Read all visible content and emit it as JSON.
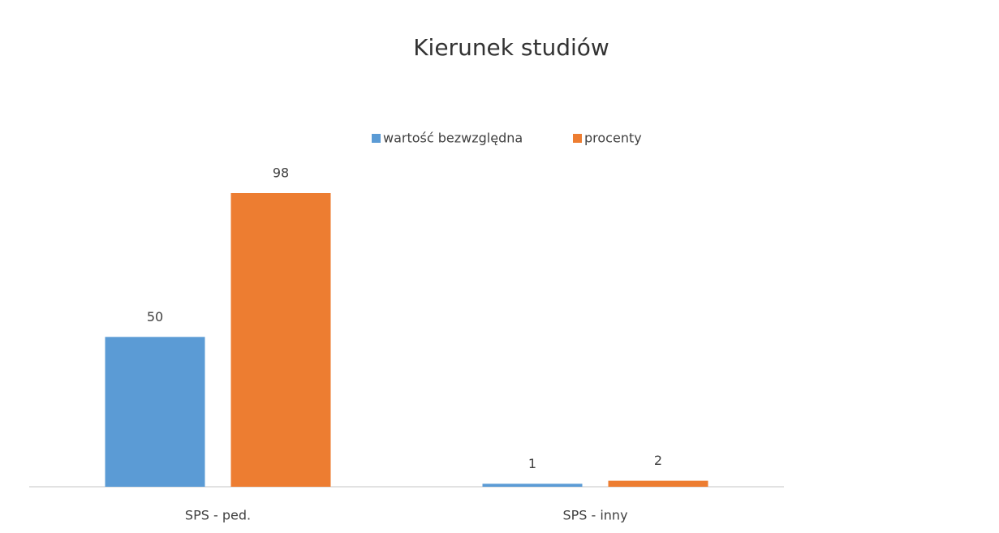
{
  "chart_data": {
    "type": "bar",
    "title": "Kierunek studiów",
    "categories": [
      "SPS - ped.",
      "SPS - inny"
    ],
    "series": [
      {
        "name": "wartość bezwzględna",
        "color": "#5b9bd5",
        "values": [
          50,
          1
        ]
      },
      {
        "name": "procenty",
        "color": "#ed7d31",
        "values": [
          98,
          2
        ]
      }
    ],
    "legend": "top"
  }
}
